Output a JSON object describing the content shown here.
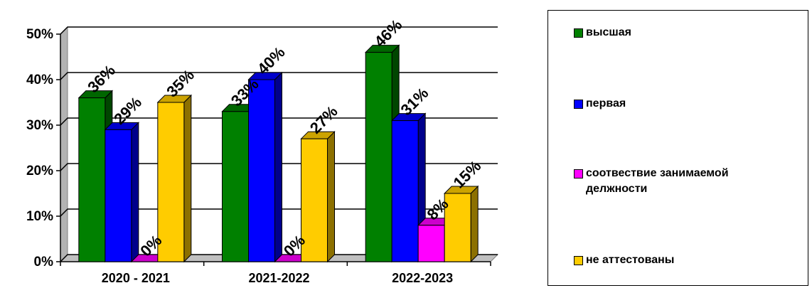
{
  "chart_data": {
    "type": "bar",
    "categories": [
      "2020  - 2021",
      "2021-2022",
      "2022-2023"
    ],
    "series": [
      {
        "name": "высшая",
        "values": [
          36,
          33,
          46
        ],
        "labels": [
          "36%",
          "33%",
          "46%"
        ],
        "color": "#008000"
      },
      {
        "name": "первая",
        "values": [
          29,
          40,
          31
        ],
        "labels": [
          "29%",
          "40%",
          "31%"
        ],
        "color": "#0000FF"
      },
      {
        "name": "соотвествие занимаемой делжности",
        "values": [
          0,
          0,
          8
        ],
        "labels": [
          "0%",
          "0%",
          "8%"
        ],
        "color": "#FF00FF"
      },
      {
        "name": "не аттестованы",
        "values": [
          35,
          27,
          15
        ],
        "labels": [
          "35%",
          "27%",
          "15%"
        ],
        "color": "#FFCC00"
      }
    ],
    "yticks": [
      "0%",
      "10%",
      "20%",
      "30%",
      "40%",
      "50%"
    ],
    "ylim": [
      0,
      50
    ],
    "grid": true,
    "legend_position": "right",
    "style": "3d-clustered-bar"
  }
}
